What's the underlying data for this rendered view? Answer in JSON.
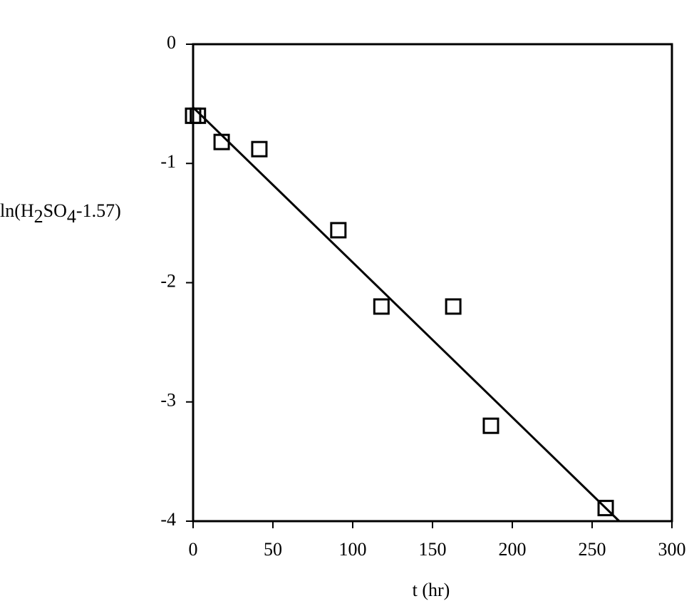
{
  "chart_data": {
    "type": "scatter",
    "x_label": "t (hr)",
    "y_label": "ln(H2SO4-1.57)",
    "series": [
      {
        "x": [
          0,
          3,
          17.9,
          41.5,
          91,
          118,
          163,
          186.6,
          258.5
        ],
        "values": [
          -0.6,
          -0.6,
          -0.82,
          -0.88,
          -1.56,
          -2.2,
          -2.2,
          -3.2,
          -3.89
        ],
        "color": "#000000",
        "marker": "square"
      },
      {
        "x": [
          0,
          267
        ],
        "values": [
          -0.53,
          -4
        ],
        "color": "#000000",
        "marker": "line"
      }
    ],
    "xlim": [
      0,
      300
    ],
    "xticks": [
      0,
      50,
      100,
      150,
      200,
      250,
      300
    ],
    "ylim": [
      -4,
      0
    ],
    "yticks": [
      0,
      -1,
      -2,
      -3,
      -4
    ],
    "grid": false
  }
}
